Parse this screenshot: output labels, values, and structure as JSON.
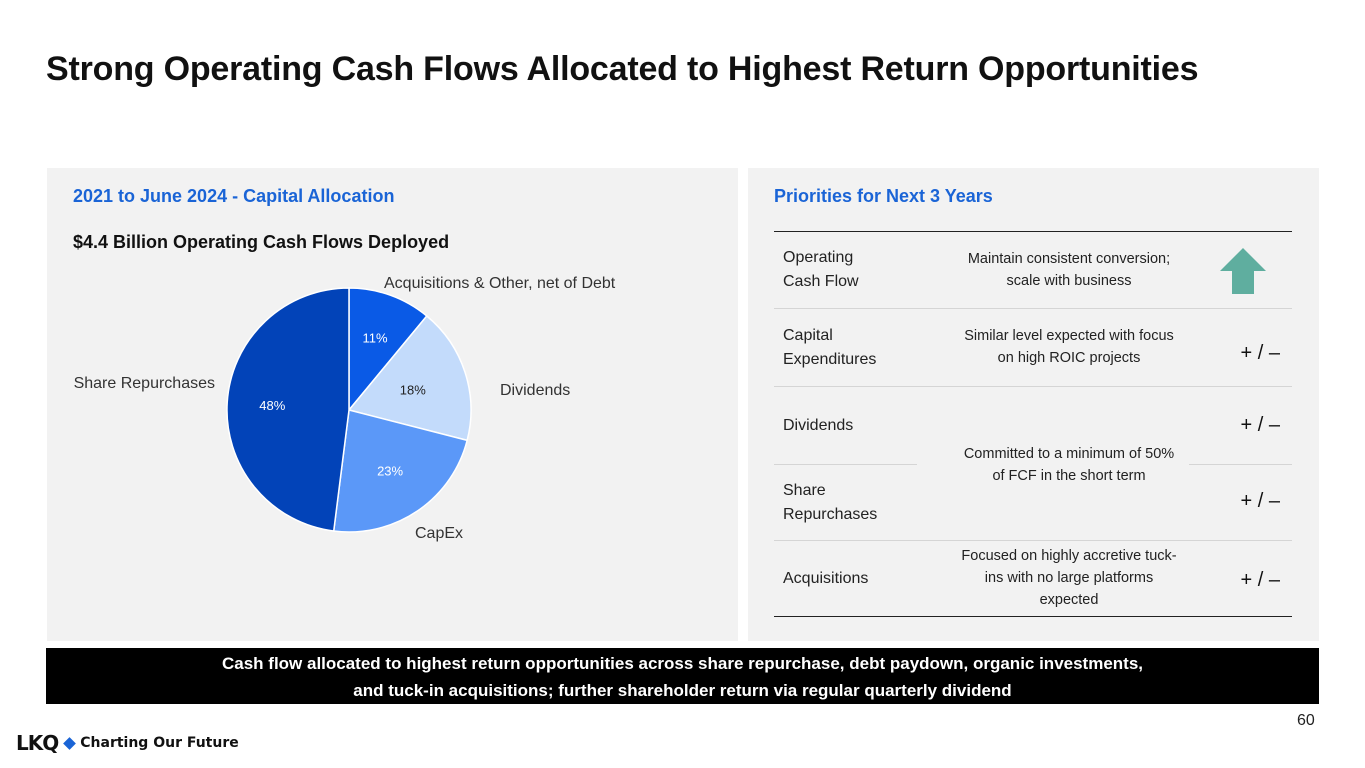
{
  "title": "Strong Operating Cash Flows Allocated to Highest Return Opportunities",
  "left_panel": {
    "heading": "2021 to June 2024 - Capital Allocation",
    "subtitle": "$4.4 Billion Operating Cash Flows Deployed"
  },
  "chart_data": {
    "type": "pie",
    "title": "$4.4 Billion Operating Cash Flows Deployed",
    "slices": [
      {
        "label": "Acquisitions & Other, net of Debt",
        "value": 11,
        "value_label": "11%",
        "color": "#0a5ae6",
        "text_color": "#ffffff"
      },
      {
        "label": "Dividends",
        "value": 18,
        "value_label": "18%",
        "color": "#c3dbfb",
        "text_color": "#222222"
      },
      {
        "label": "CapEx",
        "value": 23,
        "value_label": "23%",
        "color": "#5b98f8",
        "text_color": "#ffffff"
      },
      {
        "label": "Share Repurchases",
        "value": 48,
        "value_label": "48%",
        "color": "#0243b8",
        "text_color": "#ffffff"
      }
    ]
  },
  "right_panel": {
    "heading": "Priorities for Next 3 Years",
    "rows": [
      {
        "category": "Operating\nCash Flow",
        "description": "Maintain consistent conversion;\nscale with business",
        "indicator": "up-arrow"
      },
      {
        "category": "Capital\nExpenditures",
        "description": "Similar level expected with focus\non high ROIC projects",
        "indicator": "+ / –"
      },
      {
        "category": "Dividends",
        "description": "",
        "indicator": "+ / –"
      },
      {
        "category": "Share\nRepurchases",
        "description": "",
        "indicator": "+ / –"
      },
      {
        "category": "Acquisitions",
        "description": "Focused on highly accretive tuck-\nins with no large platforms\nexpected",
        "indicator": "+ / –"
      }
    ],
    "shared_description": "Committed to a minimum of 50%\nof FCF in the short term",
    "arrow_color": "#5fae9f"
  },
  "banner": {
    "line1": "Cash flow allocated to highest return opportunities across share repurchase, debt paydown, organic investments,",
    "line2": "and tuck-in acquisitions; further shareholder return via regular quarterly dividend"
  },
  "page_number": "60",
  "footer": {
    "logo_text": "LKQ",
    "tagline": "Charting Our Future",
    "brand_color": "#1a64d6"
  }
}
